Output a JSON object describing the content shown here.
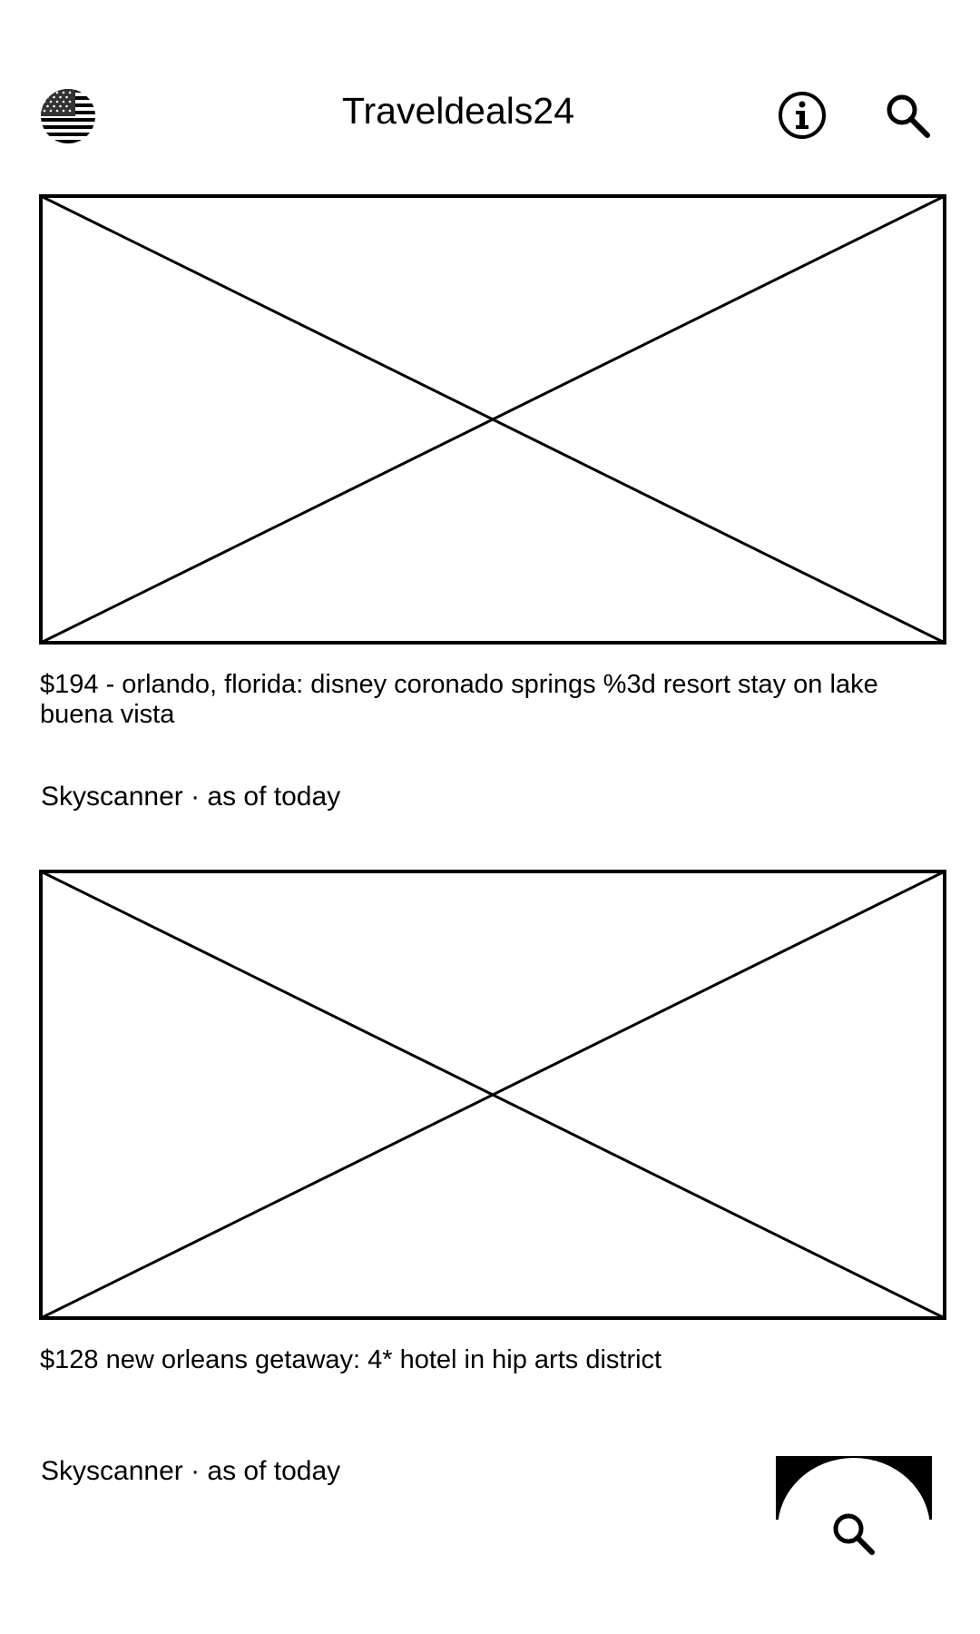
{
  "header": {
    "title": "Traveldeals24",
    "region_icon": "us-flag-icon",
    "info_icon": "info-icon",
    "search_icon": "search-icon"
  },
  "deals": [
    {
      "title": "$194 - orlando, florida: disney coronado springs %3d resort stay on lake buena vista",
      "source": "Skyscanner · as of today",
      "image_icon": "image-placeholder-icon"
    },
    {
      "title": "$128 new orleans getaway: 4* hotel in hip arts district",
      "source": "Skyscanner · as of today",
      "image_icon": "image-placeholder-icon"
    }
  ],
  "fab": {
    "icon": "search-icon"
  }
}
